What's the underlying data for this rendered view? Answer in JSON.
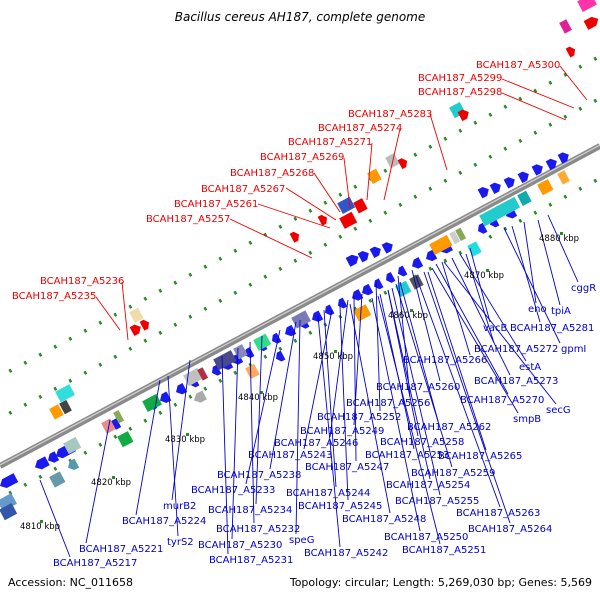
{
  "title": "Bacillus cereus AH187, complete genome",
  "footer": {
    "accession": "Accession: NC_011658",
    "topology": "Topology: circular; Length: 5,269,030 bp; Genes: 5,569"
  },
  "colors": {
    "top_label": "#ee0000",
    "bottom_label": "#0000cc",
    "backbone": "#8a8a8a",
    "tick": "#2a8a2a"
  },
  "kbp_ticks": [
    "4810 kbp",
    "4820 kbp",
    "4830 kbp",
    "4840 kbp",
    "4850 kbp",
    "4860 kbp",
    "4870 kbp",
    "4880 kbp"
  ],
  "top_labels": [
    "BCAH187_A5300",
    "BCAH187_A5299",
    "BCAH187_A5298",
    "BCAH187_A5283",
    "BCAH187_A5274",
    "BCAH187_A5271",
    "BCAH187_A5269",
    "BCAH187_A5268",
    "BCAH187_A5267",
    "BCAH187_A5261",
    "BCAH187_A5257",
    "BCAH187_A5236",
    "BCAH187_A5235"
  ],
  "bottom_labels": [
    "cggR",
    "tpiA",
    "eno",
    "BCAH187_A5281",
    "gpmI",
    "vacB",
    "BCAH187_A5272",
    "BCAH187_A5266",
    "estA",
    "BCAH187_A5273",
    "BCAH187_A5260",
    "BCAH187_A5270",
    "secG",
    "BCAH187_A5256",
    "smpB",
    "BCAH187_A5252",
    "BCAH187_A5262",
    "BCAH187_A5249",
    "BCAH187_A5258",
    "BCAH187_A5246",
    "BCAH187_A5243",
    "BCAH187_A5253",
    "BCAH187_A5265",
    "BCAH187_A5247",
    "BCAH187_A5259",
    "BCAH187_A5238",
    "BCAH187_A5244",
    "BCAH187_A5254",
    "BCAH187_A5233",
    "BCAH187_A5245",
    "BCAH187_A5255",
    "murB2",
    "BCAH187_A5234",
    "BCAH187_A5248",
    "BCAH187_A5263",
    "BCAH187_A5224",
    "BCAH187_A5232",
    "BCAH187_A5264",
    "speG",
    "BCAH187_A5250",
    "tyrS2",
    "BCAH187_A5230",
    "BCAH187_A5221",
    "BCAH187_A5242",
    "BCAH187_A5251",
    "BCAH187_A5231",
    "BCAH187_A5217"
  ]
}
